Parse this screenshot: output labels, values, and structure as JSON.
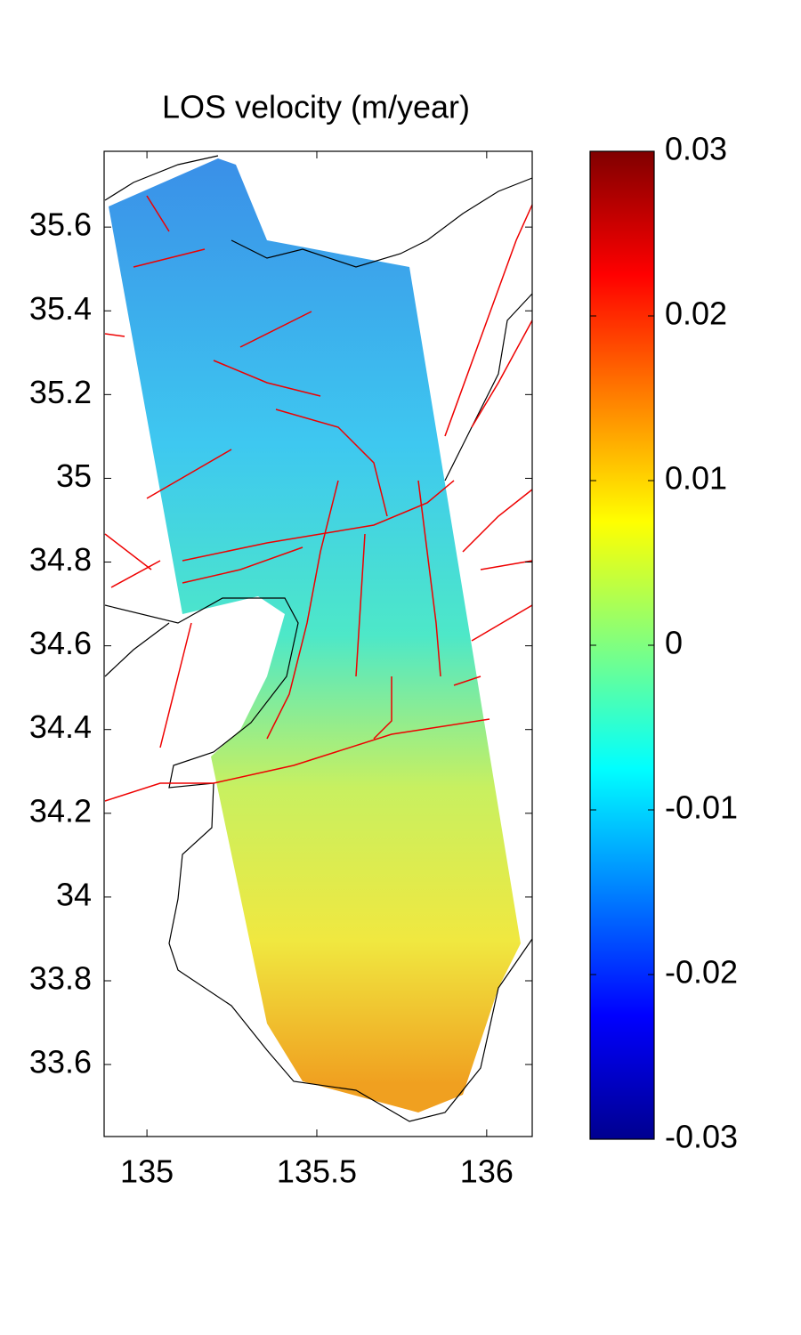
{
  "chart_data": {
    "type": "map",
    "title": "LOS velocity (m/year)",
    "xlim": [
      134.874,
      136.134
    ],
    "xticks": [
      135,
      135.5,
      136
    ],
    "ylim": [
      33.428,
      35.781
    ],
    "yticks": [
      33.6,
      33.8,
      34,
      34.2,
      34.4,
      34.6,
      34.8,
      35,
      35.2,
      35.4,
      35.6
    ],
    "colorbar": {
      "lim": [
        -0.03,
        0.03
      ],
      "ticks": [
        -0.03,
        -0.02,
        -0.01,
        0,
        0.01,
        0.02,
        0.03
      ],
      "colormap": [
        "#00008f",
        "#0000ff",
        "#0080ff",
        "#00ffff",
        "#80ff80",
        "#ffff00",
        "#ff8000",
        "#ff0000",
        "#800000"
      ]
    }
  }
}
